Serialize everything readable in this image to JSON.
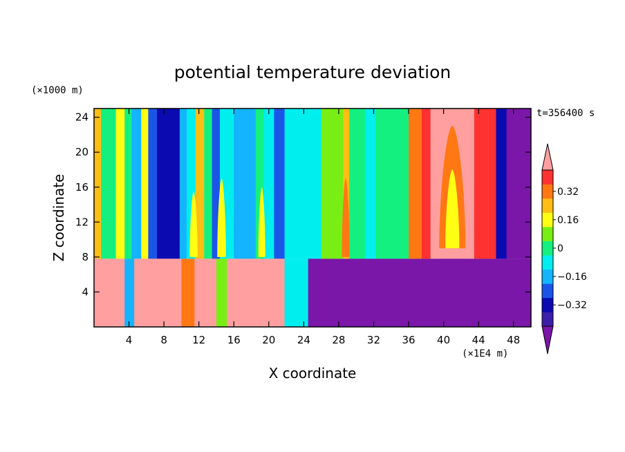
{
  "chart_data": {
    "type": "heatmap",
    "title": "potential temperature deviation",
    "xlabel": "X coordinate",
    "ylabel": "Z coordinate",
    "x_unit": "(×1E4 m)",
    "y_unit": "(×1000 m)",
    "time_label": "t=356400 s",
    "xlim": [
      0,
      50
    ],
    "ylim": [
      0,
      25
    ],
    "x_ticks": [
      4,
      8,
      12,
      16,
      20,
      24,
      28,
      32,
      36,
      40,
      44,
      48
    ],
    "x_tick_labels": [
      "4",
      "8",
      "12",
      "16",
      "20",
      "24",
      "28",
      "32",
      "36",
      "40",
      "44",
      "48"
    ],
    "y_ticks": [
      4,
      8,
      12,
      16,
      20,
      24
    ],
    "y_tick_labels": [
      "4",
      "8",
      "12",
      "16",
      "20",
      "24"
    ],
    "colorbar": {
      "levels": [
        "-inf",
        -0.4,
        -0.32,
        -0.24,
        -0.16,
        -0.08,
        0,
        0.08,
        0.16,
        0.24,
        0.32,
        0.4,
        "inf"
      ],
      "colors": [
        "#7a16a8",
        "#3b1fa8",
        "#0a0ab0",
        "#1a55e8",
        "#14b4ff",
        "#00eeee",
        "#14f080",
        "#78ee14",
        "#ffff14",
        "#ffbe14",
        "#ff7814",
        "#ff3232",
        "#ff9f9f"
      ],
      "tick_values": [
        0.32,
        0.16,
        0,
        -0.16,
        -0.32
      ],
      "tick_labels": [
        "0.32",
        "0.16",
        "0",
        "−0.16",
        "−0.32"
      ]
    },
    "layer_interface_z": 7.8,
    "field": {
      "upper_layer_columns": [
        {
          "x0": 0,
          "x1": 0.8,
          "class": 9
        },
        {
          "x0": 0.8,
          "x1": 2.5,
          "class": 6
        },
        {
          "x0": 2.5,
          "x1": 3.5,
          "class": 8
        },
        {
          "x0": 3.5,
          "x1": 4.3,
          "class": 6
        },
        {
          "x0": 4.3,
          "x1": 5.4,
          "class": 4
        },
        {
          "x0": 5.4,
          "x1": 6.2,
          "class": 8
        },
        {
          "x0": 6.2,
          "x1": 7.2,
          "class": 3
        },
        {
          "x0": 7.2,
          "x1": 9.8,
          "class": 2
        },
        {
          "x0": 9.8,
          "x1": 10.6,
          "class": 4
        },
        {
          "x0": 10.6,
          "x1": 11.6,
          "class": 5
        },
        {
          "x0": 11.6,
          "x1": 12.6,
          "class": 9
        },
        {
          "x0": 12.6,
          "x1": 13.5,
          "class": 6
        },
        {
          "x0": 13.5,
          "x1": 14.4,
          "class": 3
        },
        {
          "x0": 14.4,
          "x1": 16.0,
          "class": 5
        },
        {
          "x0": 16.0,
          "x1": 18.5,
          "class": 4
        },
        {
          "x0": 18.5,
          "x1": 19.4,
          "class": 6
        },
        {
          "x0": 19.4,
          "x1": 20.6,
          "class": 5
        },
        {
          "x0": 20.6,
          "x1": 21.8,
          "class": 3
        },
        {
          "x0": 21.8,
          "x1": 26.0,
          "class": 5
        },
        {
          "x0": 26.0,
          "x1": 28.5,
          "class": 7
        },
        {
          "x0": 28.5,
          "x1": 29.2,
          "class": 9
        },
        {
          "x0": 29.2,
          "x1": 31.0,
          "class": 6
        },
        {
          "x0": 31.0,
          "x1": 32.2,
          "class": 5
        },
        {
          "x0": 32.2,
          "x1": 36.0,
          "class": 6
        },
        {
          "x0": 36.0,
          "x1": 37.5,
          "class": 10
        },
        {
          "x0": 37.5,
          "x1": 38.5,
          "class": 11
        },
        {
          "x0": 38.5,
          "x1": 43.5,
          "class": 12
        },
        {
          "x0": 43.5,
          "x1": 46.0,
          "class": 11
        },
        {
          "x0": 46.0,
          "x1": 47.2,
          "class": 2
        },
        {
          "x0": 47.2,
          "x1": 50.0,
          "class": 0
        }
      ],
      "upper_layer_plumes": [
        {
          "x": 11.4,
          "z0": 8,
          "z1": 15.5,
          "w": 0.9,
          "class": 8
        },
        {
          "x": 14.6,
          "z0": 8,
          "z1": 17,
          "w": 1.0,
          "class": 8
        },
        {
          "x": 19.2,
          "z0": 8,
          "z1": 16,
          "w": 0.8,
          "class": 8
        },
        {
          "x": 28.8,
          "z0": 8,
          "z1": 17,
          "w": 0.9,
          "class": 10
        },
        {
          "x": 41.0,
          "z0": 9,
          "z1": 23,
          "w": 3.0,
          "class": 10
        },
        {
          "x": 41.0,
          "z0": 9,
          "z1": 18,
          "w": 1.6,
          "class": 8
        }
      ],
      "lower_layer_segments": [
        {
          "x0": 0,
          "x1": 3.5,
          "class": 12
        },
        {
          "x0": 3.5,
          "x1": 4.6,
          "class": 4
        },
        {
          "x0": 4.6,
          "x1": 10.0,
          "class": 12
        },
        {
          "x0": 10.0,
          "x1": 11.5,
          "class": 10
        },
        {
          "x0": 11.5,
          "x1": 14.0,
          "class": 12
        },
        {
          "x0": 14.0,
          "x1": 15.2,
          "class": 7
        },
        {
          "x0": 15.2,
          "x1": 21.8,
          "class": 12
        },
        {
          "x0": 21.8,
          "x1": 24.5,
          "class": 5
        },
        {
          "x0": 24.5,
          "x1": 50.0,
          "class": 0
        }
      ]
    }
  }
}
